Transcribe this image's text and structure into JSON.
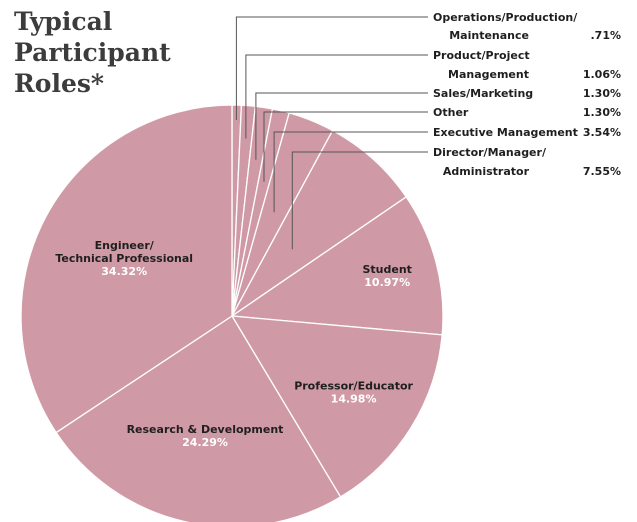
{
  "chart_data": {
    "type": "pie",
    "title": "Typical\nParticipant\nRoles*",
    "slices": [
      {
        "label_lines": [
          "Operations/Production/",
          "Maintenance"
        ],
        "value": 0.71,
        "value_text": ".71%",
        "label_mode": "legend"
      },
      {
        "label_lines": [
          "Product/Project",
          "Management"
        ],
        "value": 1.06,
        "value_text": "1.06%",
        "label_mode": "legend"
      },
      {
        "label_lines": [
          "Sales/Marketing"
        ],
        "value": 1.3,
        "value_text": "1.30%",
        "label_mode": "legend"
      },
      {
        "label_lines": [
          "Other"
        ],
        "value": 1.3,
        "value_text": "1.30%",
        "label_mode": "legend"
      },
      {
        "label_lines": [
          "Executive Management"
        ],
        "value": 3.54,
        "value_text": "3.54%",
        "label_mode": "legend"
      },
      {
        "label_lines": [
          "Director/Manager/",
          "Administrator"
        ],
        "value": 7.55,
        "value_text": "7.55%",
        "label_mode": "legend"
      },
      {
        "label_lines": [
          "Student"
        ],
        "value": 10.97,
        "value_text": "10.97%",
        "label_mode": "inside"
      },
      {
        "label_lines": [
          "Professor/Educator"
        ],
        "value": 14.98,
        "value_text": "14.98%",
        "label_mode": "inside"
      },
      {
        "label_lines": [
          "Research & Development"
        ],
        "value": 24.29,
        "value_text": "24.29%",
        "label_mode": "inside"
      },
      {
        "label_lines": [
          "Engineer/",
          "Technical Professional"
        ],
        "value": 34.32,
        "value_text": "34.32%",
        "label_mode": "inside"
      }
    ],
    "colors": {
      "slice": "#cf9aa6",
      "slice_edge": "#ffffff",
      "label_name": "#1f1f1f",
      "label_value": "#ffffff",
      "leader": "#555555"
    }
  }
}
